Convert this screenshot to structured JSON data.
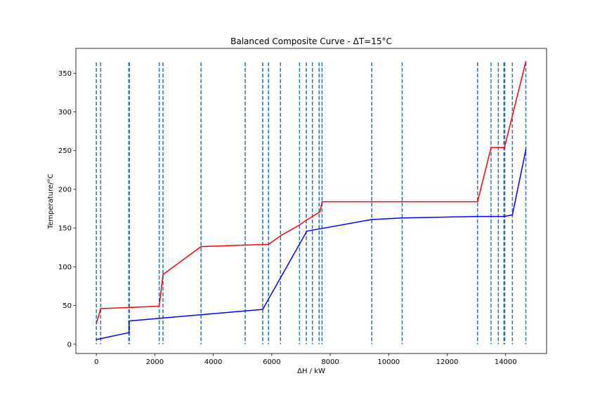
{
  "chart_data": {
    "type": "line",
    "title": "Balanced Composite Curve - ΔT=15°C",
    "xlabel": "ΔH / kW",
    "ylabel": "Temperature/°C",
    "xlim": [
      -700,
      15400
    ],
    "ylim": [
      -12,
      382
    ],
    "x_ticks": [
      0,
      2000,
      4000,
      6000,
      8000,
      10000,
      12000,
      14000
    ],
    "x_tick_labels": [
      "0",
      "2000",
      "4000",
      "6000",
      "8000",
      "10000",
      "12000",
      "14000"
    ],
    "y_ticks": [
      0,
      50,
      100,
      150,
      200,
      250,
      300,
      350
    ],
    "y_tick_labels": [
      "0",
      "50",
      "100",
      "150",
      "200",
      "250",
      "300",
      "350"
    ],
    "grid": false,
    "series": [
      {
        "color": "#ff0000",
        "x": [
          0,
          150,
          2150,
          2280,
          3580,
          5090,
          5890,
          6300,
          6950,
          7180,
          7650,
          7720,
          13040,
          13500,
          13960,
          14690
        ],
        "y": [
          27,
          46,
          49,
          90,
          126,
          128,
          129,
          140,
          154,
          160,
          171,
          184,
          184,
          254,
          254,
          365
        ]
      },
      {
        "color": "#0000ff",
        "x": [
          0,
          1120,
          1120,
          5690,
          7200,
          9420,
          10460,
          13040,
          13940,
          14230,
          14690
        ],
        "y": [
          6,
          15,
          30,
          45,
          146,
          161,
          163,
          165,
          165,
          167,
          251
        ]
      }
    ],
    "vlines": {
      "color": "#1f77b4",
      "style": "dashed",
      "x": [
        0,
        150,
        1110,
        1130,
        2150,
        2280,
        3580,
        5090,
        5690,
        5890,
        6300,
        6950,
        7180,
        7390,
        7620,
        7720,
        9420,
        10460,
        13040,
        13500,
        13750,
        13940,
        13970,
        14230,
        14690
      ],
      "ymin": 0,
      "ymax": 364
    }
  }
}
